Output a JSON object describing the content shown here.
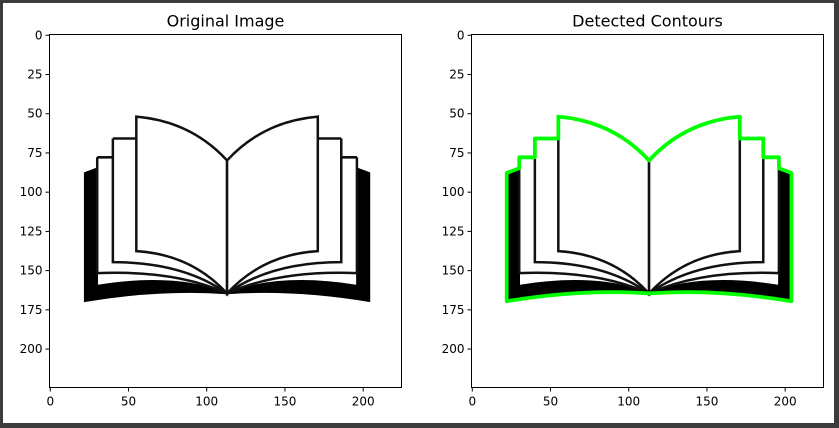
{
  "chart_data": [
    {
      "type": "image",
      "title": "Original Image",
      "xlim": [
        -0.5,
        224.5
      ],
      "ylim": [
        224.5,
        -0.5
      ],
      "xticks": [
        0,
        50,
        100,
        150,
        200
      ],
      "yticks": [
        0,
        25,
        50,
        75,
        100,
        125,
        150,
        175,
        200
      ]
    },
    {
      "type": "image",
      "title": "Detected Contours",
      "xlim": [
        -0.5,
        224.5
      ],
      "ylim": [
        224.5,
        -0.5
      ],
      "xticks": [
        0,
        50,
        100,
        150,
        200
      ],
      "yticks": [
        0,
        25,
        50,
        75,
        100,
        125,
        150,
        175,
        200
      ],
      "contour_color": "#00ff00"
    }
  ]
}
